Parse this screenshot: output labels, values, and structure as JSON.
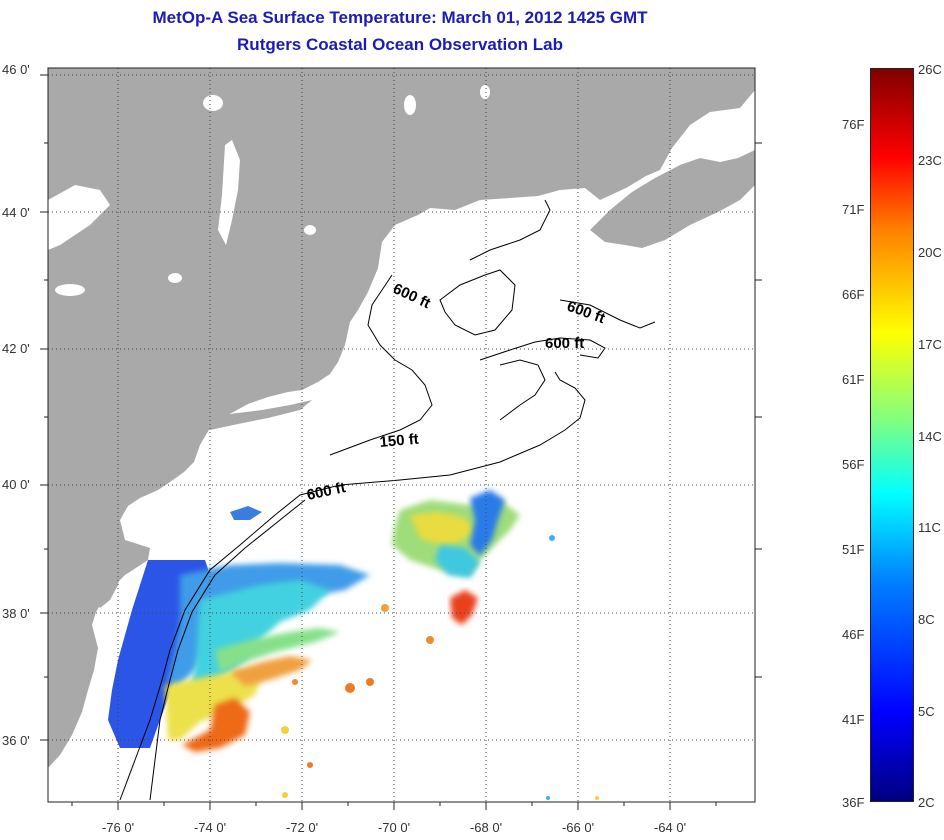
{
  "title": {
    "line1": "MetOp-A Sea Surface Temperature:  March 01, 2012 1425 GMT",
    "line2": "Rutgers Coastal Ocean Observation Lab"
  },
  "axes": {
    "lat_labels": [
      "46 0'",
      "44 0'",
      "42 0'",
      "40 0'",
      "38 0'",
      "36 0'"
    ],
    "lon_labels": [
      "-76 0'",
      "-74 0'",
      "-72 0'",
      "-70 0'",
      "-68 0'",
      "-66 0'",
      "-64 0'"
    ]
  },
  "contour_labels": [
    "600 ft",
    "600 ft",
    "600 ft",
    "150 ft",
    "600 ft"
  ],
  "colorbar": {
    "fahrenheit": [
      "76F",
      "71F",
      "66F",
      "61F",
      "56F",
      "51F",
      "46F",
      "41F",
      "36F"
    ],
    "celsius": [
      "26C",
      "23C",
      "20C",
      "17C",
      "14C",
      "11C",
      "8C",
      "5C",
      "2C"
    ]
  },
  "colors": {
    "land": "#a9a9a9",
    "title": "#1c1cb4",
    "ocean_nodata": "#ffffff"
  }
}
